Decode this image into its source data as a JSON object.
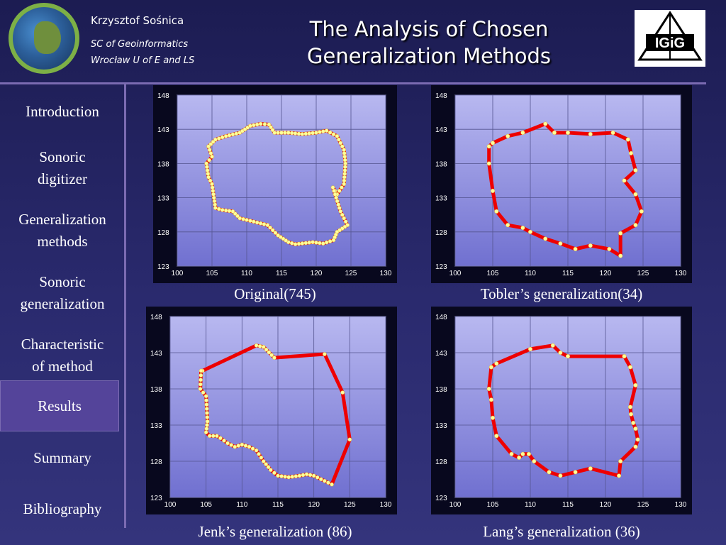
{
  "header": {
    "author": "Krzysztof Sośnica",
    "department": "SC of Geoinformatics",
    "university": "Wrocław U of E and LS",
    "title_line1": "The Analysis of Chosen",
    "title_line2": "Generalization Methods",
    "logo_text": "IGiG"
  },
  "sidebar": {
    "items": [
      {
        "line1": "Introduction",
        "line2": ""
      },
      {
        "line1": "Sonoric",
        "line2": "digitizer"
      },
      {
        "line1": "Generalization",
        "line2": "methods"
      },
      {
        "line1": "Sonoric",
        "line2": "generalization"
      },
      {
        "line1": "Characteristic",
        "line2": "of method"
      },
      {
        "line1": "Results",
        "line2": ""
      },
      {
        "line1": "Summary",
        "line2": ""
      },
      {
        "line1": "Bibliography",
        "line2": ""
      }
    ],
    "active_index": 5
  },
  "colors": {
    "plot_bg_top": "#b8b8f0",
    "plot_bg_bottom": "#7070d0",
    "line": "#ee0000",
    "marker": "#ffff99",
    "nav_active": "#54449a",
    "divider": "#7b6bb2"
  },
  "chart_data": [
    {
      "type": "line",
      "caption": "Original(745)",
      "xlim": [
        100,
        130
      ],
      "ylim": [
        123,
        148
      ],
      "xticks": [
        "100",
        "105",
        "110",
        "115",
        "120",
        "125",
        "130"
      ],
      "yticks": [
        "123",
        "128",
        "133",
        "138",
        "143",
        "148"
      ],
      "grid": true,
      "series": [
        {
          "x": [
            104.5,
            105.5,
            107,
            109,
            110.5,
            112,
            113.2,
            114,
            116,
            118,
            120,
            121.5,
            123,
            124,
            124.2,
            124,
            123,
            122.4,
            123.5,
            124.5,
            123,
            122.5,
            121,
            119.5,
            117,
            116,
            114.5,
            113,
            111,
            109,
            108,
            106.5,
            105.5,
            105,
            104.5,
            104.2,
            105,
            104.5
          ],
          "y": [
            140.5,
            141.5,
            142,
            142.5,
            143.5,
            143.8,
            143.7,
            142.5,
            142.5,
            142.3,
            142.5,
            142.8,
            142,
            140,
            138,
            135,
            133.5,
            134.5,
            131,
            129,
            128,
            126.8,
            126.3,
            126.5,
            126.2,
            126.5,
            127.5,
            129,
            129.5,
            130,
            131,
            131.2,
            131.5,
            135,
            136,
            138,
            139,
            140.5
          ],
          "markers": "dense"
        }
      ]
    },
    {
      "type": "line",
      "caption": "Tobler’s generalization(34)",
      "xlim": [
        100,
        130
      ],
      "ylim": [
        123,
        148
      ],
      "xticks": [
        "100",
        "105",
        "110",
        "115",
        "120",
        "125",
        "130"
      ],
      "yticks": [
        "123",
        "128",
        "133",
        "138",
        "143",
        "148"
      ],
      "grid": true,
      "series": [
        {
          "x": [
            104.5,
            105,
            107,
            109,
            112,
            113.2,
            115,
            118,
            121,
            123,
            123.4,
            124,
            122.5,
            124,
            124.8,
            124,
            122,
            122,
            120.5,
            118,
            116,
            114,
            112,
            110,
            109,
            107,
            105.5,
            105,
            104.5
          ],
          "y": [
            140.5,
            141,
            142,
            142.5,
            143.8,
            142.5,
            142.5,
            142.3,
            142.5,
            141.5,
            139.5,
            137,
            135.5,
            133.5,
            131,
            129,
            127.8,
            124.5,
            125.5,
            126,
            125.5,
            126.3,
            127,
            128,
            128.6,
            129,
            131,
            134,
            138
          ],
          "markers": "sparse"
        }
      ]
    },
    {
      "type": "line",
      "caption": "Jenk’s generalization (86)",
      "xlim": [
        100,
        130
      ],
      "ylim": [
        123,
        148
      ],
      "xticks": [
        "100",
        "105",
        "110",
        "115",
        "120",
        "125",
        "130"
      ],
      "yticks": [
        "123",
        "128",
        "133",
        "138",
        "143",
        "148"
      ],
      "grid": true,
      "series": [
        {
          "x": [
            104.5,
            112,
            113,
            114.5,
            121.5,
            124,
            125,
            122.5,
            120,
            119,
            118,
            116.5,
            115,
            114,
            113,
            112,
            111,
            110,
            109,
            108,
            107,
            106.5,
            105.5,
            105,
            105.2,
            105,
            104.2,
            104.3
          ],
          "y": [
            140.5,
            144,
            143.8,
            142.3,
            142.8,
            137.5,
            131,
            124.8,
            126,
            126.2,
            126,
            125.8,
            126,
            126.8,
            128,
            129.5,
            130,
            130.3,
            130,
            130.5,
            131.2,
            131.5,
            131.5,
            132,
            133.5,
            137,
            138,
            140.5
          ],
          "markers": "dense-partial"
        }
      ]
    },
    {
      "type": "line",
      "caption": "Lang’s generalization (36)",
      "xlim": [
        100,
        130
      ],
      "ylim": [
        123,
        148
      ],
      "xticks": [
        "100",
        "105",
        "110",
        "115",
        "120",
        "125",
        "130"
      ],
      "yticks": [
        "123",
        "128",
        "133",
        "138",
        "143",
        "148"
      ],
      "grid": true,
      "series": [
        {
          "x": [
            104.8,
            105.5,
            110,
            113,
            114,
            115,
            122.5,
            123.3,
            124,
            123.3,
            123.4,
            123.7,
            124,
            124.3,
            124,
            122,
            121.8,
            118,
            116,
            114,
            112.5,
            110.5,
            109.8,
            109,
            108.5,
            107.5,
            105.5,
            105,
            104.8,
            104.5,
            104.8
          ],
          "y": [
            141,
            141.5,
            143.5,
            144,
            143,
            142.5,
            142.5,
            141,
            138.5,
            135.5,
            134.5,
            133.3,
            132.5,
            131,
            130,
            128,
            126,
            127,
            126.5,
            126,
            126.5,
            128,
            129,
            129,
            128.5,
            129,
            131.5,
            134,
            136.5,
            138,
            141
          ],
          "markers": "sparse"
        }
      ]
    }
  ]
}
